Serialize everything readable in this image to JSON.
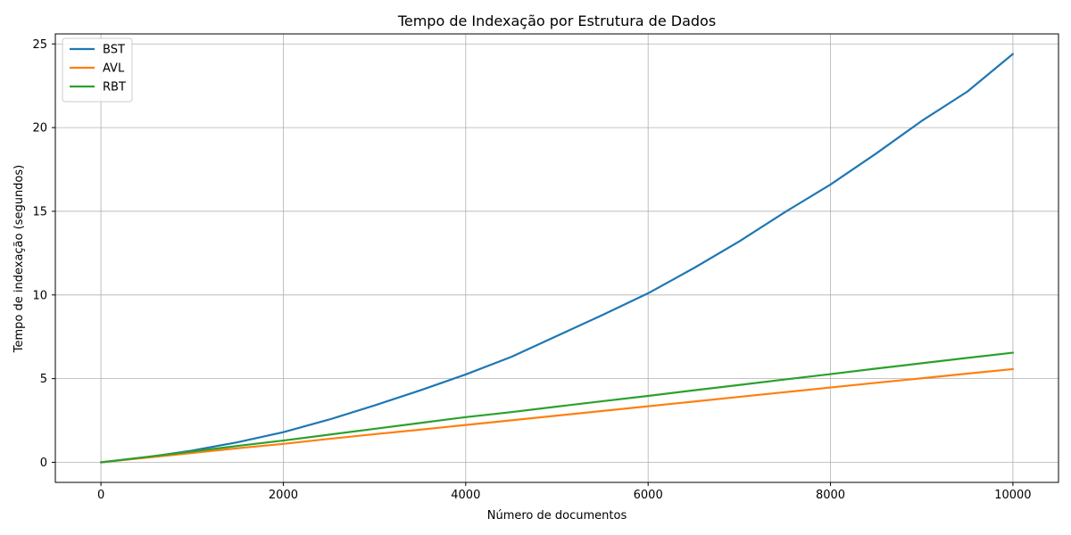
{
  "chart_data": {
    "type": "line",
    "title": "Tempo de Indexação por Estrutura de Dados",
    "xlabel": "Número de documentos",
    "ylabel": "Tempo de indexação (segundos)",
    "xlim": [
      -500,
      10500
    ],
    "ylim": [
      -1.2,
      25.6
    ],
    "xticks": [
      0,
      2000,
      4000,
      6000,
      8000,
      10000
    ],
    "xtick_labels": [
      "0",
      "2000",
      "4000",
      "6000",
      "8000",
      "10000"
    ],
    "yticks": [
      0,
      5,
      10,
      15,
      20,
      25
    ],
    "ytick_labels": [
      "0",
      "5",
      "10",
      "15",
      "20",
      "25"
    ],
    "grid": true,
    "legend_position": "top-left",
    "x": [
      0,
      500,
      1000,
      1500,
      2000,
      2500,
      3000,
      3500,
      4000,
      4500,
      5000,
      5500,
      6000,
      6500,
      7000,
      7500,
      8000,
      8500,
      9000,
      9500,
      10000
    ],
    "series": [
      {
        "name": "BST",
        "color": "#1f77b4",
        "values": [
          0,
          0.3,
          0.7,
          1.2,
          1.8,
          2.55,
          3.4,
          4.3,
          5.25,
          6.3,
          7.55,
          8.8,
          10.1,
          11.6,
          13.2,
          14.95,
          16.6,
          18.45,
          20.4,
          22.15,
          24.4
        ]
      },
      {
        "name": "AVL",
        "color": "#ff7f0e",
        "values": [
          0,
          0.28,
          0.56,
          0.84,
          1.1,
          1.4,
          1.68,
          1.95,
          2.23,
          2.51,
          2.79,
          3.07,
          3.35,
          3.63,
          3.91,
          4.19,
          4.47,
          4.75,
          5.02,
          5.3,
          5.57
        ]
      },
      {
        "name": "RBT",
        "color": "#2ca02c",
        "values": [
          0,
          0.32,
          0.65,
          0.98,
          1.3,
          1.65,
          2.0,
          2.35,
          2.7,
          3.0,
          3.33,
          3.65,
          3.97,
          4.3,
          4.62,
          4.95,
          5.27,
          5.6,
          5.92,
          6.24,
          6.55
        ]
      }
    ]
  }
}
